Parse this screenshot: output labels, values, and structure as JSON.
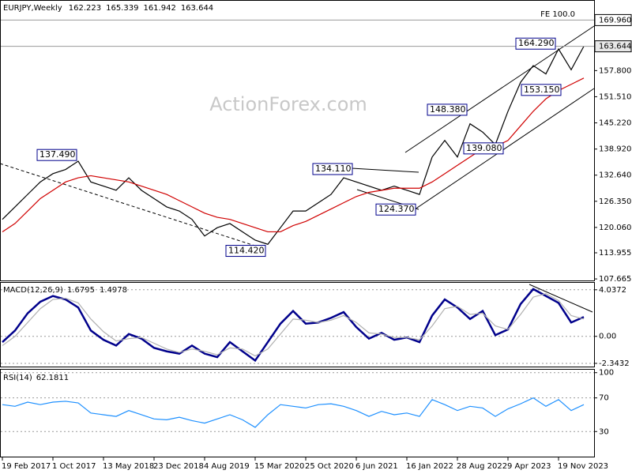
{
  "chart_data": [
    {
      "type": "line",
      "title": "EURJPY,Weekly",
      "ohlc": [
        162.223,
        165.339,
        161.942,
        163.644
      ],
      "categories": [
        "19 Feb 2017",
        null,
        null,
        null,
        "1 Oct 2017",
        null,
        null,
        null,
        "13 May 2018",
        null,
        null,
        null,
        "23 Dec 2018",
        null,
        null,
        null,
        "4 Aug 2019",
        null,
        null,
        null,
        "15 Mar 2020",
        null,
        null,
        null,
        "25 Oct 2020",
        null,
        null,
        null,
        "6 Jun 2021",
        null,
        null,
        null,
        "16 Jan 2022",
        null,
        null,
        null,
        "28 Aug 2022",
        null,
        null,
        null,
        "9 Apr 2023",
        null,
        null,
        null,
        "19 Nov 2023",
        null,
        null
      ],
      "series": [
        {
          "color": "#000000",
          "values": [
            122,
            125,
            128,
            131,
            133,
            134,
            136,
            131,
            130,
            129,
            132,
            129,
            127,
            125,
            124,
            122,
            118,
            120,
            121,
            119,
            117,
            116,
            120,
            124,
            124,
            126,
            128,
            132,
            131,
            130,
            129,
            130,
            129,
            128,
            137,
            141,
            137,
            145,
            143,
            140,
            148,
            155,
            159,
            157,
            163,
            158,
            163.644
          ]
        },
        {
          "color": "#d00000",
          "values": [
            119,
            121,
            124,
            127,
            129,
            131,
            132,
            132.5,
            132,
            131.5,
            131,
            130,
            129,
            128,
            126.5,
            125,
            123.5,
            122.5,
            122,
            121,
            120,
            119,
            119,
            120.5,
            121.5,
            123,
            124.5,
            126,
            127.5,
            128.5,
            129,
            129.5,
            129.5,
            129.5,
            131,
            133,
            135,
            137,
            139,
            139.5,
            141,
            144.5,
            148,
            151,
            153,
            154.5,
            156
          ]
        }
      ],
      "ylim": [
        107.3,
        174.6
      ],
      "yticks": [
        107.665,
        113.955,
        {
          "value": 120.06,
          "label": "120.060"
        },
        {
          "value": 126.35,
          "label": "126.350"
        },
        {
          "value": 132.64,
          "label": "132.640"
        },
        {
          "value": 138.92,
          "label": "138.920"
        },
        {
          "value": 145.22,
          "label": "145.220"
        },
        {
          "value": 151.51,
          "label": "151.510"
        },
        {
          "value": 157.8,
          "label": "157.800"
        }
      ],
      "levels": [
        {
          "value": 169.96,
          "label": "169.960"
        },
        {
          "value": 163.644,
          "label": "163.644"
        }
      ],
      "fe_label": "FE 100.0",
      "annotations": [
        {
          "value": 137.49,
          "label": "137.490"
        },
        {
          "value": 114.42,
          "label": "114.420"
        },
        {
          "value": 134.11,
          "label": "134.110"
        },
        {
          "value": 124.37,
          "label": "124.370"
        },
        {
          "value": 148.38,
          "label": "148.380"
        },
        {
          "value": 139.08,
          "label": "139.080"
        },
        {
          "value": 164.29,
          "label": "164.290"
        },
        {
          "value": 153.15,
          "label": "153.150"
        }
      ],
      "watermark": "ActionForex.com"
    },
    {
      "type": "line",
      "title": "MACD(12,26,9)",
      "readings": [
        1.6795,
        1.4978
      ],
      "series": [
        {
          "color": "#00008b",
          "values": [
            -0.5,
            0.5,
            2,
            3,
            3.5,
            3.2,
            2.5,
            0.5,
            -0.3,
            -0.8,
            0.2,
            -0.2,
            -1,
            -1.3,
            -1.5,
            -0.8,
            -1.5,
            -1.8,
            -0.5,
            -1.3,
            -2.1,
            -0.5,
            1.1,
            2.2,
            1.1,
            1.2,
            1.6,
            2.1,
            0.8,
            -0.2,
            0.3,
            -0.3,
            -0.1,
            -0.5,
            1.8,
            3.2,
            2.5,
            1.5,
            2.2,
            0.1,
            0.6,
            2.8,
            4.1,
            3.5,
            2.9,
            1.2,
            1.68
          ]
        },
        {
          "color": "#b0b0b0",
          "values": [
            -0.8,
            0,
            1.2,
            2.4,
            3.2,
            3.3,
            2.9,
            1.5,
            0.4,
            -0.4,
            -0.2,
            -0.1,
            -0.6,
            -1.1,
            -1.4,
            -1.1,
            -1.3,
            -1.6,
            -1,
            -1.1,
            -1.7,
            -1.1,
            0.2,
            1.5,
            1.4,
            1.2,
            1.4,
            1.8,
            1.2,
            0.3,
            0.2,
            -0.1,
            -0.1,
            -0.3,
            0.9,
            2.4,
            2.6,
            1.9,
            2,
            0.9,
            0.6,
            1.9,
            3.4,
            3.7,
            3.1,
            1.8,
            1.5
          ]
        }
      ],
      "ylim": [
        -2.62,
        4.64
      ],
      "yticks": [
        4.0372,
        {
          "value": 0,
          "label": "0.00"
        },
        -2.3432
      ]
    },
    {
      "type": "line",
      "title": "RSI(14)",
      "readings": [
        62.1811
      ],
      "series": [
        {
          "color": "#1e90ff",
          "values": [
            62,
            60,
            65,
            62,
            65,
            66,
            64,
            52,
            50,
            48,
            55,
            50,
            45,
            44,
            47,
            43,
            40,
            45,
            50,
            44,
            35,
            50,
            62,
            60,
            58,
            62,
            63,
            60,
            55,
            48,
            54,
            50,
            52,
            48,
            68,
            62,
            55,
            60,
            58,
            48,
            57,
            63,
            70,
            60,
            68,
            55,
            62
          ]
        }
      ],
      "ylim": [
        0.2,
        103.5
      ],
      "yticks": [
        100,
        70,
        30
      ]
    }
  ]
}
